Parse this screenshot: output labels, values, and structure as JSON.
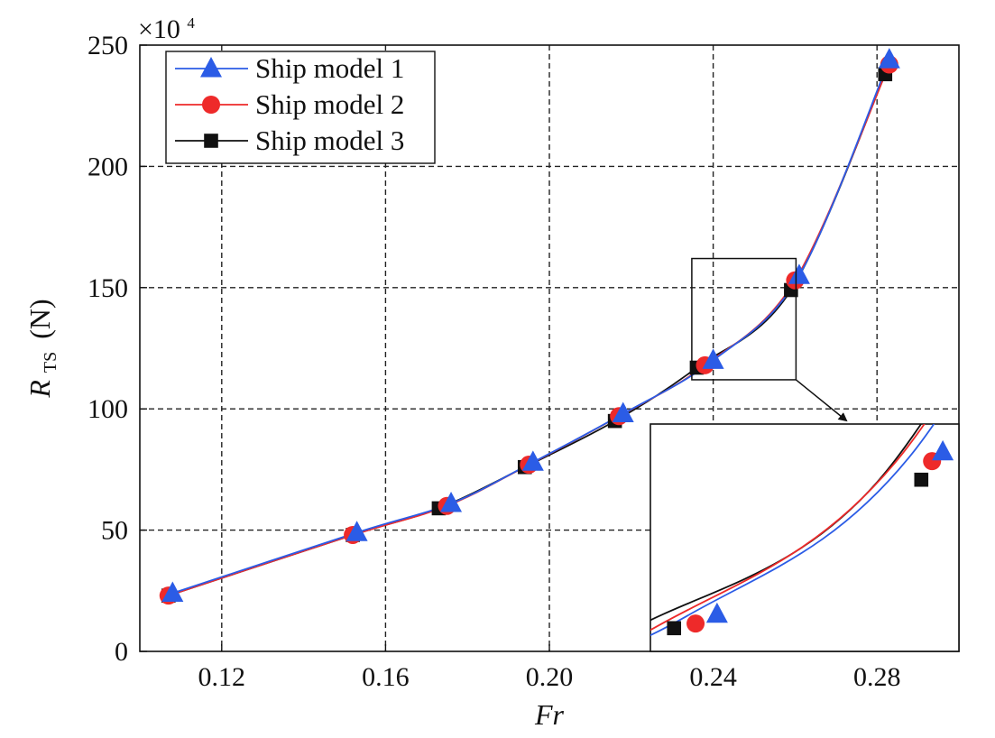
{
  "chart_data": {
    "type": "line",
    "xlabel": "Fr",
    "ylabel": "R",
    "ylabel_sub": "TS",
    "ylabel_unit": "(N)",
    "y_multiplier": "×10",
    "y_multiplier_exp": "4",
    "xlim": [
      0.1,
      0.3
    ],
    "ylim": [
      0,
      250
    ],
    "x_ticks": [
      0.12,
      0.16,
      0.2,
      0.24,
      0.28
    ],
    "x_tick_labels": [
      "0.12",
      "0.16",
      "0.20",
      "0.24",
      "0.28"
    ],
    "y_ticks": [
      0,
      50,
      100,
      150,
      200,
      250
    ],
    "y_tick_labels": [
      "0",
      "50",
      "100",
      "150",
      "200",
      "250"
    ],
    "grid": true,
    "legend_position": "top-left",
    "series": [
      {
        "name": "Ship model 1",
        "color": "#2b5ce6",
        "marker": "triangle",
        "points": [
          [
            0.108,
            24
          ],
          [
            0.153,
            49
          ],
          [
            0.176,
            61
          ],
          [
            0.196,
            78
          ],
          [
            0.218,
            98
          ],
          [
            0.24,
            120
          ],
          [
            0.261,
            155
          ],
          [
            0.283,
            244
          ]
        ]
      },
      {
        "name": "Ship model 2",
        "color": "#ee2a2a",
        "marker": "circle",
        "points": [
          [
            0.107,
            23
          ],
          [
            0.152,
            48
          ],
          [
            0.175,
            60
          ],
          [
            0.195,
            77
          ],
          [
            0.217,
            97
          ],
          [
            0.238,
            118
          ],
          [
            0.26,
            153
          ],
          [
            0.283,
            242
          ]
        ]
      },
      {
        "name": "Ship model 3",
        "color": "#111111",
        "marker": "square",
        "points": [
          [
            0.107,
            23
          ],
          [
            0.152,
            48
          ],
          [
            0.173,
            59
          ],
          [
            0.194,
            76
          ],
          [
            0.216,
            95
          ],
          [
            0.236,
            117
          ],
          [
            0.259,
            149
          ],
          [
            0.282,
            238
          ]
        ]
      }
    ],
    "inset": {
      "zoom_region": {
        "x": [
          0.235,
          0.26
        ],
        "y": [
          112,
          162
        ]
      },
      "x_range": [
        0.2338,
        0.2625
      ],
      "y_range": [
        112,
        161
      ]
    }
  }
}
